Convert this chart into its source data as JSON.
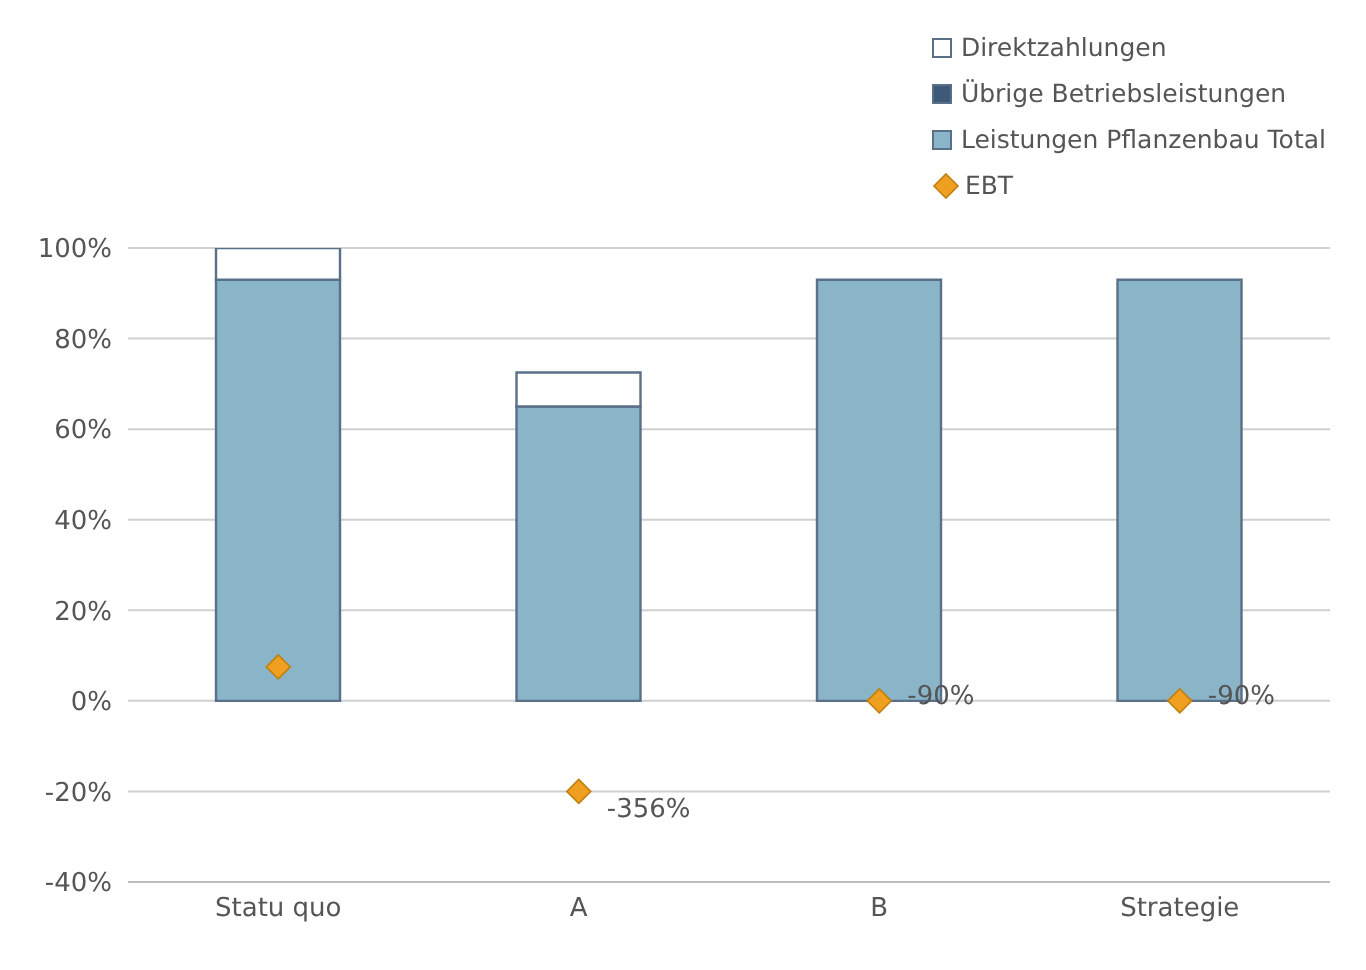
{
  "chart_data": {
    "type": "bar",
    "stacked": true,
    "categories": [
      "Statu quo",
      "A",
      "B",
      "Strategie"
    ],
    "series": [
      {
        "name": "Leistungen Pflanzenbau Total",
        "color": "#8ab4c8",
        "values": [
          93,
          65,
          93,
          93
        ]
      },
      {
        "name": "Übrige Betriebsleistungen",
        "color": "#3d5a78",
        "values": [
          0,
          0,
          0,
          0
        ]
      },
      {
        "name": "Direktzahlungen",
        "color": "#ffffff",
        "values": [
          7,
          7.5,
          0,
          0
        ]
      },
      {
        "name": "EBT",
        "type": "scatter",
        "color": "#f0a020",
        "marker": "diamond",
        "values": [
          7.5,
          -20,
          0,
          0
        ]
      }
    ],
    "ylim": [
      -40,
      100
    ],
    "yticks": [
      {
        "value": -40,
        "label": "-40%"
      },
      {
        "value": -20,
        "label": "-20%"
      },
      {
        "value": 0,
        "label": "0%"
      },
      {
        "value": 20,
        "label": "20%"
      },
      {
        "value": 40,
        "label": "40%"
      },
      {
        "value": 60,
        "label": "60%"
      },
      {
        "value": 80,
        "label": "80%"
      },
      {
        "value": 100,
        "label": "100%"
      }
    ],
    "grid": "y",
    "legend": "top right",
    "annotations": [
      {
        "text": "-356%",
        "x": "A",
        "y": -20
      },
      {
        "text": "-90%",
        "x": "B",
        "y": 0
      },
      {
        "text": "-90%",
        "x": "Strategie",
        "y": 0
      }
    ]
  }
}
